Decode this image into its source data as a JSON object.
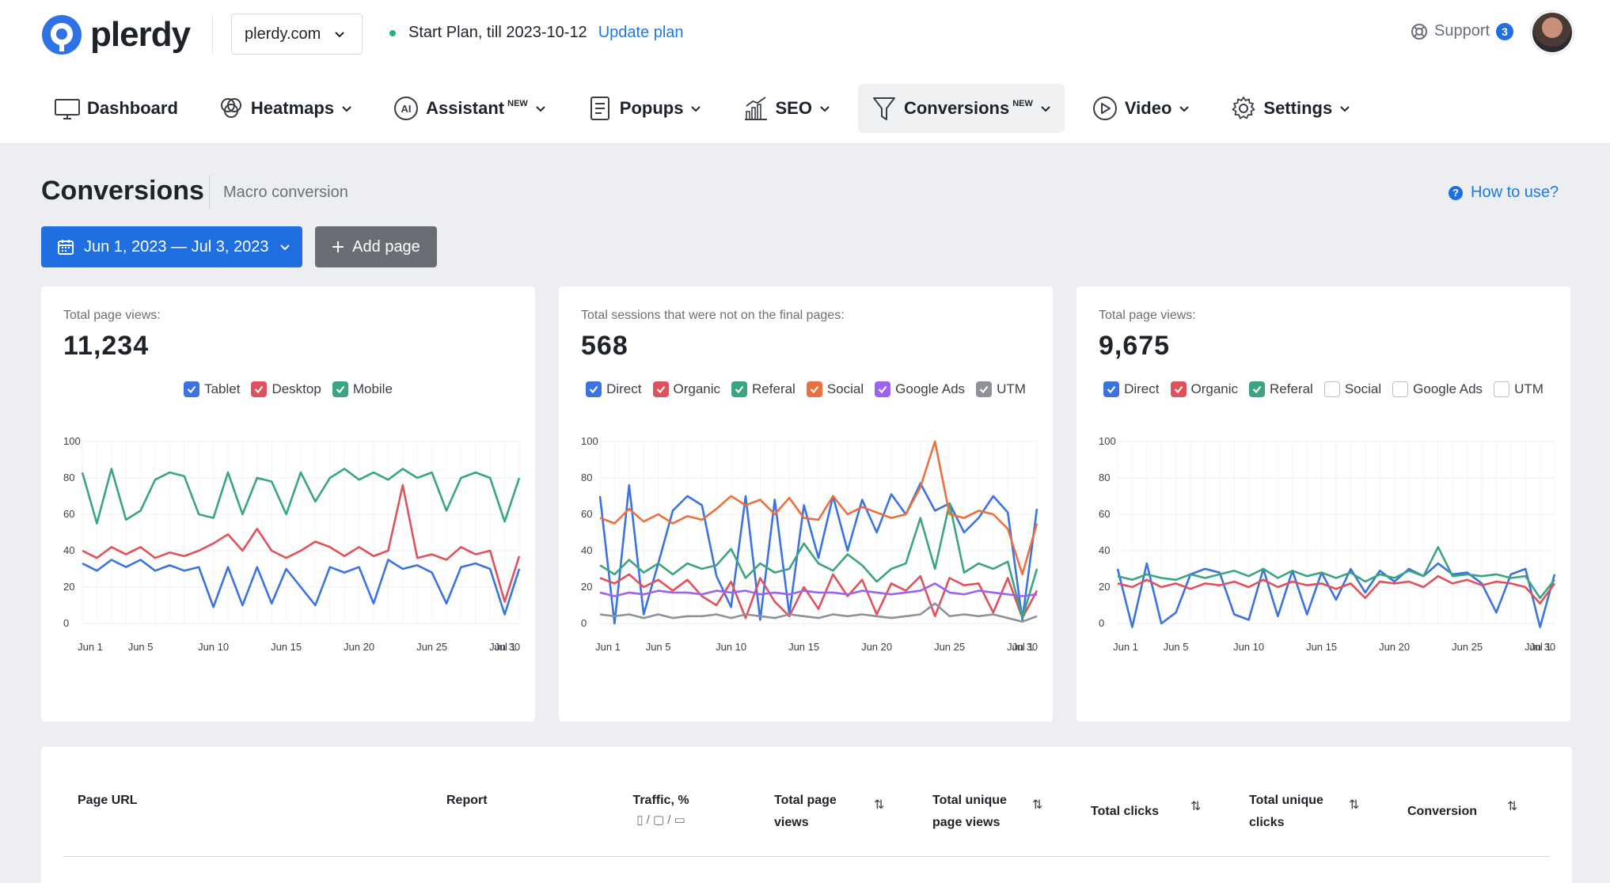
{
  "header": {
    "logo_text": "plerdy",
    "site": "plerdy.com",
    "plan_text": "Start Plan, till 2023-10-12",
    "update_plan": "Update plan",
    "support": "Support",
    "support_count": "3"
  },
  "nav": [
    {
      "label": "Dashboard",
      "icon": "monitor-icon"
    },
    {
      "label": "Heatmaps",
      "icon": "heatmap-icon"
    },
    {
      "label": "Assistant",
      "badge": "NEW",
      "icon": "ai-icon"
    },
    {
      "label": "Popups",
      "icon": "document-icon"
    },
    {
      "label": "SEO",
      "icon": "bar-chart-icon"
    },
    {
      "label": "Conversions",
      "badge": "NEW",
      "icon": "funnel-icon",
      "active": true
    },
    {
      "label": "Video",
      "icon": "play-icon"
    },
    {
      "label": "Settings",
      "icon": "gear-icon"
    }
  ],
  "page": {
    "title": "Conversions",
    "subtitle": "Macro conversion",
    "how_to": "How to use?",
    "date_range": "Jun 1, 2023 — Jul 3, 2023",
    "add_page": "Add page"
  },
  "colors": {
    "blue": "#3b73e0",
    "red": "#e0525b",
    "green": "#3aa57e",
    "orange": "#ec6f3d",
    "purple": "#9d63f0",
    "gray": "#8e9197"
  },
  "cards": [
    {
      "label": "Total page views:",
      "value": "11,234",
      "legend": [
        {
          "name": "Tablet",
          "color": "blue",
          "checked": true
        },
        {
          "name": "Desktop",
          "color": "red",
          "checked": true
        },
        {
          "name": "Mobile",
          "color": "green",
          "checked": true
        }
      ]
    },
    {
      "label": "Total sessions that were not on the final pages:",
      "value": "568",
      "legend": [
        {
          "name": "Direct",
          "color": "blue",
          "checked": true
        },
        {
          "name": "Organic",
          "color": "red",
          "checked": true
        },
        {
          "name": "Referal",
          "color": "green",
          "checked": true
        },
        {
          "name": "Social",
          "color": "orange",
          "checked": true
        },
        {
          "name": "Google Ads",
          "color": "purple",
          "checked": true
        },
        {
          "name": "UTM",
          "color": "gray",
          "checked": true
        }
      ]
    },
    {
      "label": "Total page views:",
      "value": "9,675",
      "legend": [
        {
          "name": "Direct",
          "color": "blue",
          "checked": true
        },
        {
          "name": "Organic",
          "color": "red",
          "checked": true
        },
        {
          "name": "Referal",
          "color": "green",
          "checked": true
        },
        {
          "name": "Social",
          "color": "gray",
          "checked": false
        },
        {
          "name": "Google Ads",
          "color": "gray",
          "checked": false
        },
        {
          "name": "UTM",
          "color": "gray",
          "checked": false
        }
      ]
    }
  ],
  "chart_data": [
    {
      "type": "line",
      "ylim": [
        0,
        100
      ],
      "yticks": [
        0,
        20,
        40,
        60,
        80,
        100
      ],
      "xticks": [
        "Jun 1",
        "Jun 5",
        "Jun 10",
        "Jun 15",
        "Jun 20",
        "Jun 25",
        "Jun 30",
        "Jul 1"
      ],
      "series": [
        {
          "name": "Tablet",
          "color": "blue",
          "values": [
            33,
            29,
            35,
            31,
            35,
            29,
            32,
            29,
            31,
            9,
            31,
            10,
            31,
            11,
            30,
            20,
            10,
            31,
            28,
            31,
            11,
            35,
            30,
            32,
            28,
            11,
            31,
            33,
            30,
            5,
            30
          ]
        },
        {
          "name": "Desktop",
          "color": "red",
          "values": [
            40,
            36,
            42,
            38,
            42,
            36,
            39,
            37,
            40,
            44,
            49,
            40,
            52,
            40,
            36,
            40,
            45,
            42,
            37,
            42,
            37,
            40,
            76,
            36,
            38,
            35,
            42,
            38,
            40,
            12,
            37
          ]
        },
        {
          "name": "Mobile",
          "color": "green",
          "values": [
            83,
            55,
            85,
            57,
            62,
            79,
            83,
            81,
            60,
            58,
            83,
            60,
            80,
            78,
            60,
            83,
            67,
            80,
            85,
            79,
            83,
            79,
            85,
            80,
            83,
            62,
            80,
            83,
            80,
            56,
            80
          ]
        }
      ]
    },
    {
      "type": "line",
      "ylim": [
        0,
        100
      ],
      "yticks": [
        0,
        20,
        40,
        60,
        80,
        100
      ],
      "xticks": [
        "Jun 1",
        "Jun 5",
        "Jun 10",
        "Jun 15",
        "Jun 20",
        "Jun 25",
        "Jun 30",
        "Jul 1"
      ],
      "series": [
        {
          "name": "Direct",
          "color": "blue",
          "values": [
            70,
            0,
            76,
            5,
            33,
            62,
            70,
            65,
            26,
            9,
            70,
            2,
            68,
            5,
            65,
            36,
            70,
            40,
            68,
            50,
            71,
            60,
            77,
            62,
            66,
            50,
            58,
            70,
            61,
            2,
            63
          ]
        },
        {
          "name": "Organic",
          "color": "red",
          "values": [
            25,
            22,
            27,
            20,
            24,
            18,
            24,
            15,
            10,
            23,
            3,
            25,
            12,
            4,
            20,
            8,
            27,
            15,
            24,
            5,
            22,
            18,
            26,
            4,
            25,
            21,
            22,
            6,
            25,
            3,
            18
          ]
        },
        {
          "name": "Referal",
          "color": "green",
          "values": [
            32,
            27,
            35,
            28,
            33,
            27,
            33,
            30,
            32,
            41,
            25,
            33,
            28,
            30,
            44,
            33,
            29,
            38,
            32,
            23,
            30,
            33,
            58,
            30,
            66,
            28,
            33,
            30,
            34,
            3,
            30
          ]
        },
        {
          "name": "Social",
          "color": "orange",
          "values": [
            58,
            55,
            63,
            56,
            60,
            55,
            59,
            57,
            63,
            70,
            65,
            68,
            60,
            69,
            58,
            57,
            70,
            60,
            64,
            61,
            58,
            60,
            75,
            100,
            60,
            58,
            62,
            60,
            52,
            27,
            55
          ]
        },
        {
          "name": "Google Ads",
          "color": "purple",
          "values": [
            17,
            15,
            17,
            16,
            18,
            17,
            17,
            16,
            18,
            17,
            18,
            16,
            17,
            16,
            18,
            17,
            17,
            16,
            18,
            17,
            16,
            17,
            18,
            22,
            17,
            16,
            18,
            17,
            16,
            15,
            16
          ]
        },
        {
          "name": "UTM",
          "color": "gray",
          "values": [
            5,
            4,
            5,
            3,
            5,
            3,
            4,
            4,
            5,
            3,
            5,
            4,
            3,
            5,
            4,
            3,
            5,
            4,
            5,
            4,
            3,
            4,
            5,
            11,
            4,
            5,
            4,
            5,
            3,
            1,
            4
          ]
        }
      ]
    },
    {
      "type": "line",
      "ylim": [
        0,
        100
      ],
      "yticks": [
        0,
        20,
        40,
        60,
        80,
        100
      ],
      "xticks": [
        "Jun 1",
        "Jun 5",
        "Jun 10",
        "Jun 15",
        "Jun 20",
        "Jun 25",
        "Jun 30",
        "Jul 1"
      ],
      "series": [
        {
          "name": "Direct",
          "color": "blue",
          "values": [
            30,
            -2,
            33,
            0,
            6,
            27,
            30,
            28,
            5,
            2,
            30,
            4,
            29,
            5,
            28,
            13,
            30,
            17,
            29,
            23,
            30,
            26,
            33,
            27,
            28,
            22,
            6,
            27,
            30,
            -2,
            27
          ]
        },
        {
          "name": "Organic",
          "color": "red",
          "values": [
            22,
            20,
            24,
            20,
            22,
            19,
            22,
            21,
            23,
            20,
            24,
            20,
            23,
            21,
            22,
            19,
            22,
            14,
            23,
            22,
            23,
            20,
            26,
            22,
            24,
            21,
            23,
            22,
            20,
            11,
            22
          ]
        },
        {
          "name": "Referal",
          "color": "green",
          "values": [
            26,
            24,
            27,
            25,
            24,
            27,
            25,
            27,
            29,
            26,
            30,
            25,
            29,
            26,
            28,
            25,
            28,
            23,
            27,
            25,
            29,
            26,
            42,
            26,
            27,
            26,
            27,
            25,
            26,
            14,
            24
          ]
        }
      ]
    }
  ],
  "table": {
    "columns": [
      {
        "label": "Page URL"
      },
      {
        "label": "Report"
      },
      {
        "label": "Traffic, %",
        "sub": "▯ / ▢ / ▭"
      },
      {
        "label": "Total page views",
        "sortable": true
      },
      {
        "label": "Total unique page views",
        "sortable": true
      },
      {
        "label": "Total clicks",
        "sortable": true
      },
      {
        "label": "Total unique clicks",
        "sortable": true
      },
      {
        "label": "Conversion",
        "sortable": true
      }
    ]
  }
}
